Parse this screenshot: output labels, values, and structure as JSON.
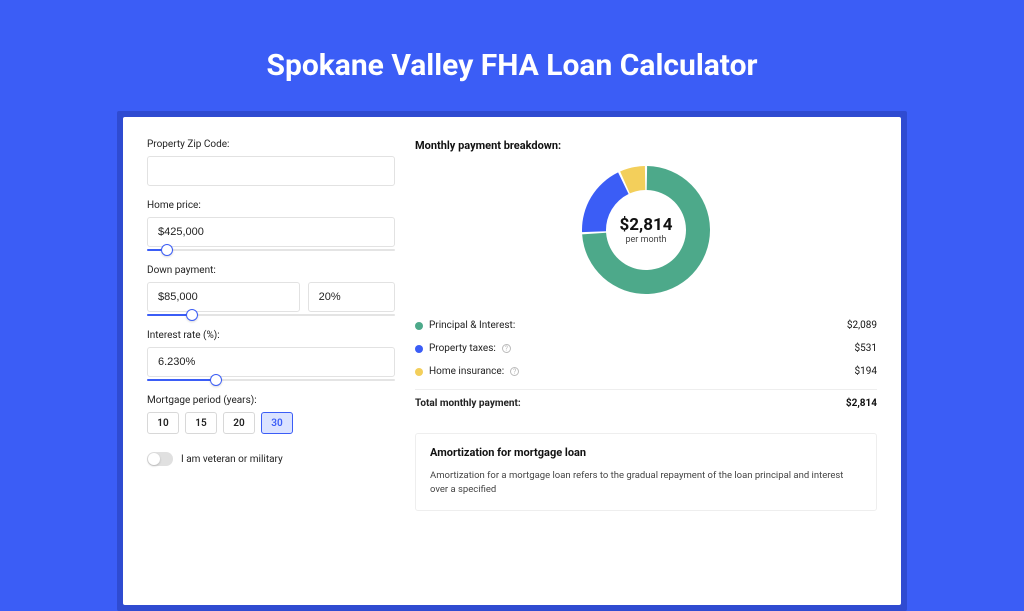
{
  "page": {
    "title": "Spokane Valley FHA Loan Calculator"
  },
  "labels": {
    "zip": "Property Zip Code:",
    "home_price": "Home price:",
    "down_payment": "Down payment:",
    "interest_rate": "Interest rate (%):",
    "mortgage_period": "Mortgage period (years):",
    "veteran": "I am veteran or military"
  },
  "inputs": {
    "zip": "",
    "home_price": "$425,000",
    "down_payment_amount": "$85,000",
    "down_payment_pct": "20%",
    "interest_rate": "6.230%"
  },
  "sliders": {
    "home_price_pct": 8,
    "down_payment_pct": 18,
    "interest_rate_pct": 28
  },
  "periods": {
    "options": [
      "10",
      "15",
      "20",
      "30"
    ],
    "selected": "30"
  },
  "breakdown": {
    "header": "Monthly payment breakdown:",
    "donut": {
      "center_amount": "$2,814",
      "center_sub": "per month",
      "segments": [
        {
          "label": "Principal & Interest:",
          "value_label": "$2,089",
          "color": "#4da98a",
          "fraction": 0.742,
          "info": false
        },
        {
          "label": "Property taxes:",
          "value_label": "$531",
          "color": "#3b5df6",
          "fraction": 0.189,
          "info": true
        },
        {
          "label": "Home insurance:",
          "value_label": "$194",
          "color": "#f3cf5b",
          "fraction": 0.069,
          "info": true
        }
      ],
      "inner_radius": 40,
      "outer_radius": 64,
      "gap_deg": 2
    },
    "total": {
      "label": "Total monthly payment:",
      "value_label": "$2,814"
    }
  },
  "amortization": {
    "title": "Amortization for mortgage loan",
    "text": "Amortization for a mortgage loan refers to the gradual repayment of the loan principal and interest over a specified"
  }
}
